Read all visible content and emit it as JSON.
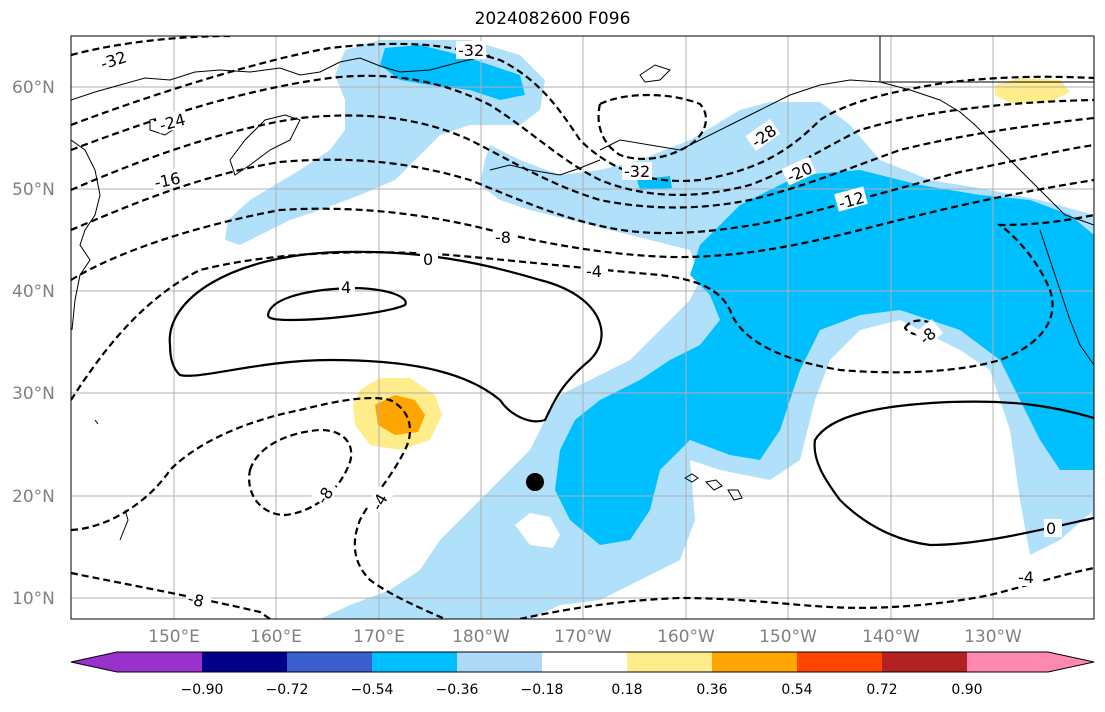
{
  "title": "2024082600 F096",
  "latitude_labels": [
    "60°N",
    "50°N",
    "40°N",
    "30°N",
    "20°N",
    "10°N"
  ],
  "longitude_labels": [
    "150°E",
    "160°E",
    "170°E",
    "180°W",
    "170°W",
    "160°W",
    "150°W",
    "140°W",
    "130°W"
  ],
  "colorbar": {
    "ticks": [
      "−0.90",
      "−0.72",
      "−0.54",
      "−0.36",
      "−0.18",
      "0.18",
      "0.36",
      "0.54",
      "0.72",
      "0.90"
    ],
    "colors": [
      "#9932cc",
      "#00008b",
      "#3a5fcd",
      "#00bfff",
      "#add8f8",
      "#ffffff",
      "#ffec8b",
      "#ffa500",
      "#ff4500",
      "#b22222",
      "#ff88b0"
    ]
  },
  "shading_colors": {
    "neg_strong": "#00bfff",
    "neg_weak": "#b0e0fa",
    "pos_weak": "#ffec8b",
    "pos_strong": "#ffa500"
  },
  "contour_labels": [
    "-32",
    "-32",
    "-32",
    "-24",
    "-16",
    "-8",
    "-4",
    "0",
    "4",
    "-28",
    "-20",
    "-12",
    "-8",
    "-4",
    "-8",
    "0",
    "-4",
    "-8"
  ],
  "marker": "storm-center-dot"
}
